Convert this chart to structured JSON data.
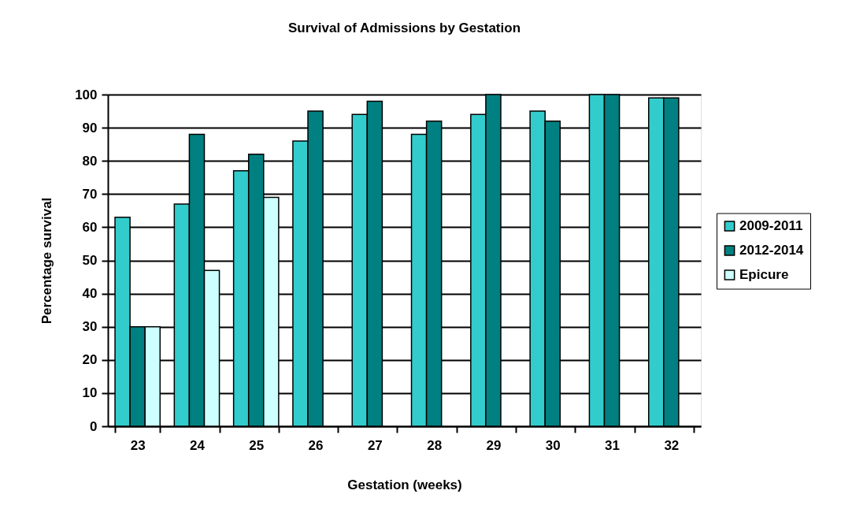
{
  "chart_data": {
    "type": "bar",
    "title": "Survival of Admissions by Gestation",
    "xlabel": "Gestation (weeks)",
    "ylabel": "Percentage survival",
    "categories": [
      "23",
      "24",
      "25",
      "26",
      "27",
      "28",
      "29",
      "30",
      "31",
      "32"
    ],
    "series": [
      {
        "name": "2009-2011",
        "color": "#33cccc",
        "values": [
          63,
          67,
          77,
          86,
          94,
          88,
          94,
          95,
          100,
          99
        ]
      },
      {
        "name": "2012-2014",
        "color": "#008080",
        "values": [
          30,
          88,
          82,
          95,
          98,
          92,
          100,
          92,
          100,
          99
        ]
      },
      {
        "name": "Epicure",
        "color": "#ccffff",
        "values": [
          30,
          47,
          69,
          null,
          null,
          null,
          null,
          null,
          null,
          null
        ]
      }
    ],
    "ylim": [
      0,
      100
    ],
    "yticks": [
      0,
      10,
      20,
      30,
      40,
      50,
      60,
      70,
      80,
      90,
      100
    ],
    "grid": "y",
    "legend": "right"
  }
}
